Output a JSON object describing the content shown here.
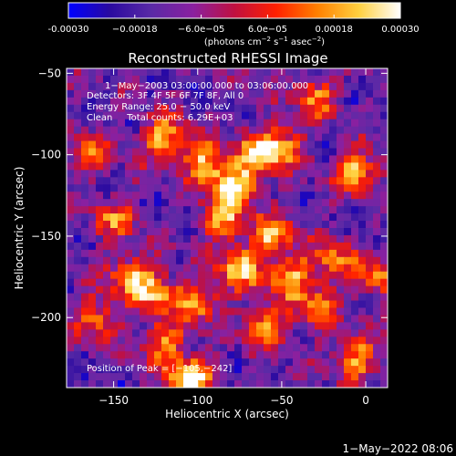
{
  "chart_data": {
    "type": "heatmap",
    "title": "Reconstructed RHESSI Image",
    "xlabel": "Heliocentric X (arcsec)",
    "ylabel": "Heliocentric Y (arcsec)",
    "xlim": [
      -178,
      13
    ],
    "ylim": [
      -243,
      -47
    ],
    "x_ticks": [
      -150,
      -100,
      -50,
      0
    ],
    "y_ticks": [
      -50,
      -100,
      -150,
      -200
    ],
    "x_tick_labels": [
      "−150",
      "−100",
      "−50",
      "0"
    ],
    "y_tick_labels": [
      "−50",
      "−100",
      "−150",
      "−200"
    ],
    "colorbar": {
      "range": [
        -0.0003,
        0.0003
      ],
      "tick_labels": [
        "-0.00030",
        "−0.00018",
        "−6.0e−05",
        "6.0e−05",
        "0.00018",
        "0.00030"
      ],
      "tick_values": [
        -0.0003,
        -0.00018,
        -6e-05,
        6e-05,
        0.00018,
        0.0003
      ],
      "unit_parts": {
        "open": "(photons cm",
        "exp1": "−2",
        "mid1": " s",
        "exp2": "−1",
        "mid2": " asec",
        "exp3": "−2",
        "close": ")"
      },
      "colors": [
        "#0000ff",
        "#2a0aa0",
        "#5a2aa6",
        "#8a20a0",
        "#c01040",
        "#ff2000",
        "#ff8000",
        "#ffd040",
        "#ffffff"
      ]
    },
    "annotations": {
      "time_range": "1−May−2003 03:00:00.000 to 03:06:00.000",
      "detectors": "Detectors: 3F 4F 5F 6F 7F 8F, All 0",
      "energy_range": "Energy Range: 25.0 − 50.0 keV",
      "method_counts": "Clean     Total counts: 6.29E+03",
      "peak": "Position of Peak = [−105,−242]"
    },
    "peak_position": [
      -105,
      -242
    ],
    "hot_spots": [
      {
        "x": -78,
        "y": -120,
        "v": 1.0
      },
      {
        "x": -95,
        "y": -105,
        "v": 0.8
      },
      {
        "x": -65,
        "y": -100,
        "v": 0.7
      },
      {
        "x": -50,
        "y": -95,
        "v": 0.75
      },
      {
        "x": -120,
        "y": -90,
        "v": 0.8
      },
      {
        "x": -5,
        "y": -110,
        "v": 0.8
      },
      {
        "x": -30,
        "y": -65,
        "v": 0.6
      },
      {
        "x": -85,
        "y": -140,
        "v": 0.7
      },
      {
        "x": -55,
        "y": -150,
        "v": 0.75
      },
      {
        "x": -75,
        "y": -170,
        "v": 0.8
      },
      {
        "x": -45,
        "y": -175,
        "v": 0.75
      },
      {
        "x": -20,
        "y": -165,
        "v": 0.6
      },
      {
        "x": -140,
        "y": -175,
        "v": 0.7
      },
      {
        "x": -125,
        "y": -185,
        "v": 0.7
      },
      {
        "x": -100,
        "y": -190,
        "v": 0.75
      },
      {
        "x": -60,
        "y": -205,
        "v": 0.7
      },
      {
        "x": -30,
        "y": -195,
        "v": 0.6
      },
      {
        "x": -160,
        "y": -200,
        "v": 0.6
      },
      {
        "x": -120,
        "y": -215,
        "v": 0.65
      },
      {
        "x": -105,
        "y": -238,
        "v": 1.1
      },
      {
        "x": -5,
        "y": -225,
        "v": 0.7
      },
      {
        "x": -165,
        "y": -100,
        "v": 0.55
      },
      {
        "x": -150,
        "y": -140,
        "v": 0.55
      },
      {
        "x": 5,
        "y": -175,
        "v": 0.6
      }
    ]
  },
  "footer": {
    "timestamp": "1−May−2022 08:06"
  }
}
